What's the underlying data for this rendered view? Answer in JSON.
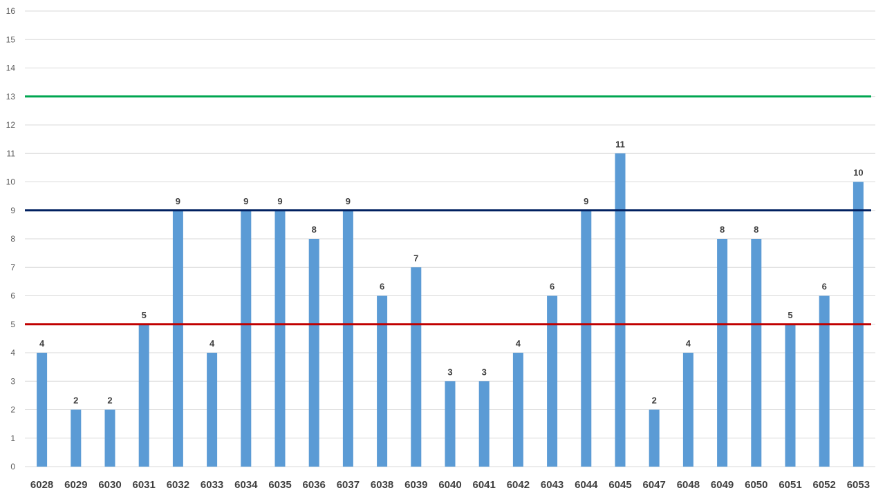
{
  "chart_data": {
    "type": "bar",
    "categories": [
      "6028",
      "6029",
      "6030",
      "6031",
      "6032",
      "6033",
      "6034",
      "6035",
      "6036",
      "6037",
      "6038",
      "6039",
      "6040",
      "6041",
      "6042",
      "6043",
      "6044",
      "6045",
      "6047",
      "6048",
      "6049",
      "6050",
      "6051",
      "6052",
      "6053"
    ],
    "values": [
      4,
      2,
      2,
      5,
      9,
      4,
      9,
      9,
      8,
      9,
      6,
      7,
      3,
      3,
      4,
      6,
      9,
      11,
      2,
      4,
      8,
      8,
      5,
      6,
      10
    ],
    "reference_lines": [
      {
        "value": 13,
        "color": "#00a651"
      },
      {
        "value": 9,
        "color": "#002060"
      },
      {
        "value": 5,
        "color": "#c00000"
      }
    ],
    "ylim": [
      0,
      16
    ],
    "yticks": [
      0,
      1,
      2,
      3,
      4,
      5,
      6,
      7,
      8,
      9,
      10,
      11,
      12,
      13,
      14,
      15,
      16
    ],
    "grid": true,
    "data_labels": true,
    "bar_color": "#5b9bd5",
    "title": "",
    "xlabel": "",
    "ylabel": ""
  }
}
